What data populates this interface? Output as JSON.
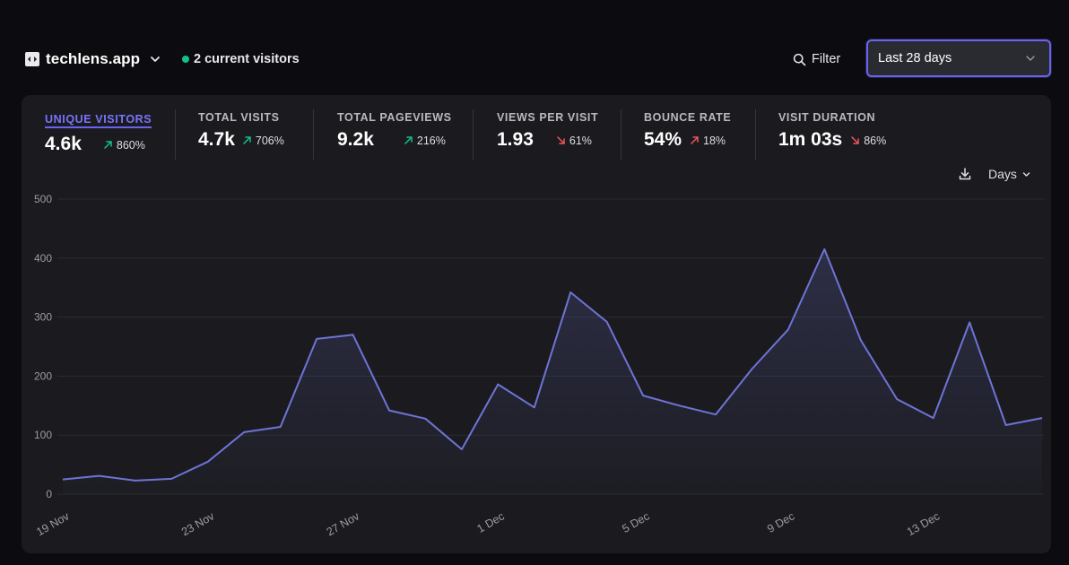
{
  "header": {
    "site_name": "techlens.app",
    "current_visitors": "2 current visitors",
    "filter_label": "Filter",
    "date_range": "Last 28 days"
  },
  "stats": [
    {
      "label": "UNIQUE VISITORS",
      "value": "4.6k",
      "change": "860%",
      "direction": "up",
      "active": true
    },
    {
      "label": "TOTAL VISITS",
      "value": "4.7k",
      "change": "706%",
      "direction": "up",
      "active": false
    },
    {
      "label": "TOTAL PAGEVIEWS",
      "value": "9.2k",
      "change": "216%",
      "direction": "up",
      "active": false
    },
    {
      "label": "VIEWS PER VISIT",
      "value": "1.93",
      "change": "61%",
      "direction": "down",
      "active": false
    },
    {
      "label": "BOUNCE RATE",
      "value": "54%",
      "change": "18%",
      "direction": "up",
      "active": false
    },
    {
      "label": "VISIT DURATION",
      "value": "1m 03s",
      "change": "86%",
      "direction": "down",
      "active": false
    }
  ],
  "chart_controls": {
    "download_icon": "download-icon",
    "interval_label": "Days"
  },
  "colors": {
    "accent": "#6a63f2",
    "line": "#6e74d6",
    "up": "#10c28a",
    "down": "#f2545b",
    "card_bg": "#1b1b1f",
    "page_bg": "#0c0c10"
  },
  "chart_data": {
    "type": "area",
    "title": "",
    "xlabel": "",
    "ylabel": "",
    "ylim": [
      0,
      500
    ],
    "yticks": [
      0,
      100,
      200,
      300,
      400,
      500
    ],
    "grid": true,
    "x": [
      "19 Nov",
      "20 Nov",
      "21 Nov",
      "22 Nov",
      "23 Nov",
      "24 Nov",
      "25 Nov",
      "26 Nov",
      "27 Nov",
      "28 Nov",
      "29 Nov",
      "30 Nov",
      "1 Dec",
      "2 Dec",
      "3 Dec",
      "4 Dec",
      "5 Dec",
      "6 Dec",
      "7 Dec",
      "8 Dec",
      "9 Dec",
      "10 Dec",
      "11 Dec",
      "12 Dec",
      "13 Dec",
      "14 Dec",
      "15 Dec",
      "16 Dec"
    ],
    "x_tick_labels": [
      "19 Nov",
      "23 Nov",
      "27 Nov",
      "1 Dec",
      "5 Dec",
      "9 Dec",
      "13 Dec"
    ],
    "series": [
      {
        "name": "Unique visitors",
        "values": [
          25,
          31,
          23,
          26,
          55,
          105,
          114,
          263,
          270,
          142,
          128,
          76,
          186,
          147,
          342,
          292,
          167,
          150,
          135,
          212,
          279,
          415,
          261,
          161,
          129,
          291,
          117,
          129
        ]
      }
    ]
  }
}
